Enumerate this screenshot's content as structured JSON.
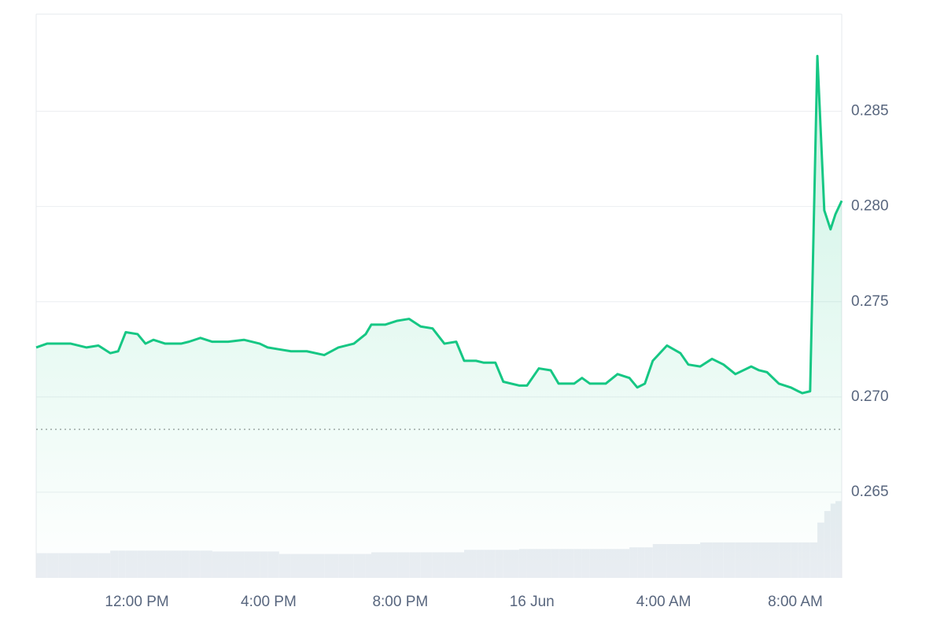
{
  "chart_data": {
    "type": "line",
    "x": [
      8.94,
      9.27,
      9.63,
      9.99,
      10.47,
      10.83,
      11.19,
      11.43,
      11.66,
      12.02,
      12.26,
      12.5,
      12.86,
      13.34,
      13.58,
      13.93,
      14.29,
      14.77,
      15.25,
      15.73,
      15.97,
      16.32,
      16.68,
      17.16,
      17.69,
      18.12,
      18.59,
      18.95,
      19.12,
      19.55,
      19.91,
      20.27,
      20.62,
      20.98,
      21.34,
      21.7,
      21.94,
      22.3,
      22.54,
      22.89,
      23.13,
      23.61,
      23.85,
      24.21,
      24.57,
      24.81,
      25.28,
      25.52,
      25.76,
      26.24,
      26.6,
      26.96,
      27.2,
      27.43,
      27.67,
      28.1,
      28.51,
      28.75,
      29.11,
      29.47,
      29.82,
      30.18,
      30.66,
      30.9,
      31.14,
      31.5,
      31.86,
      32.09,
      32.21,
      32.45,
      32.67,
      32.88,
      33.07,
      33.22,
      33.41
    ],
    "series": [
      {
        "color": "#16c784",
        "values": [
          0.2726,
          0.2728,
          0.2728,
          0.2728,
          0.2726,
          0.2727,
          0.2723,
          0.2724,
          0.2734,
          0.2733,
          0.2728,
          0.273,
          0.2728,
          0.2728,
          0.2729,
          0.2731,
          0.2729,
          0.2729,
          0.273,
          0.2728,
          0.2726,
          0.2725,
          0.2724,
          0.2724,
          0.2722,
          0.2726,
          0.2728,
          0.2733,
          0.2738,
          0.2738,
          0.274,
          0.2741,
          0.2737,
          0.2736,
          0.2728,
          0.2729,
          0.2719,
          0.2719,
          0.2718,
          0.2718,
          0.2708,
          0.2706,
          0.2706,
          0.2715,
          0.2714,
          0.2707,
          0.2707,
          0.271,
          0.2707,
          0.2707,
          0.2712,
          0.271,
          0.2705,
          0.2707,
          0.2719,
          0.2727,
          0.2723,
          0.2717,
          0.2716,
          0.272,
          0.2717,
          0.2712,
          0.2716,
          0.2714,
          0.2713,
          0.2707,
          0.2705,
          0.2703,
          0.2702,
          0.2703,
          0.2879,
          0.2798,
          0.2788,
          0.2796,
          0.2803
        ]
      },
      {
        "type": "bar",
        "axis": "y2",
        "color": "#e9edf2",
        "values": [
          30,
          30,
          30,
          30,
          30,
          30,
          33,
          33,
          33,
          33,
          33,
          33,
          33,
          33,
          33,
          33,
          32,
          32,
          32,
          32,
          32,
          29,
          29,
          29,
          29,
          29,
          29,
          29,
          31,
          31,
          31,
          31,
          31,
          31,
          31,
          31,
          34,
          34,
          34,
          34,
          34,
          35,
          35,
          35,
          35,
          35,
          35,
          35,
          35,
          35,
          35,
          37,
          37,
          37,
          41,
          41,
          41,
          41,
          43,
          43,
          43,
          43,
          43,
          43,
          43,
          43,
          43,
          43,
          43,
          43,
          67,
          81,
          90,
          93,
          95
        ]
      }
    ],
    "xlim": [
      8.94,
      33.41
    ],
    "xticks": [
      {
        "value": 12,
        "label": "12:00 PM"
      },
      {
        "value": 16,
        "label": "4:00 PM"
      },
      {
        "value": 20,
        "label": "8:00 PM"
      },
      {
        "value": 24,
        "label": "16 Jun"
      },
      {
        "value": 28,
        "label": "4:00 AM"
      },
      {
        "value": 32,
        "label": "8:00 AM"
      }
    ],
    "ylim": [
      0.2605,
      0.2901
    ],
    "yticks": [
      0.265,
      {
        "value": 0.27,
        "label": "0.270"
      },
      0.275,
      {
        "value": 0.28,
        "label": "0.280"
      },
      0.285
    ],
    "y2lim": [
      0,
      100
    ],
    "reference_line": 0.2683,
    "grid": true
  }
}
